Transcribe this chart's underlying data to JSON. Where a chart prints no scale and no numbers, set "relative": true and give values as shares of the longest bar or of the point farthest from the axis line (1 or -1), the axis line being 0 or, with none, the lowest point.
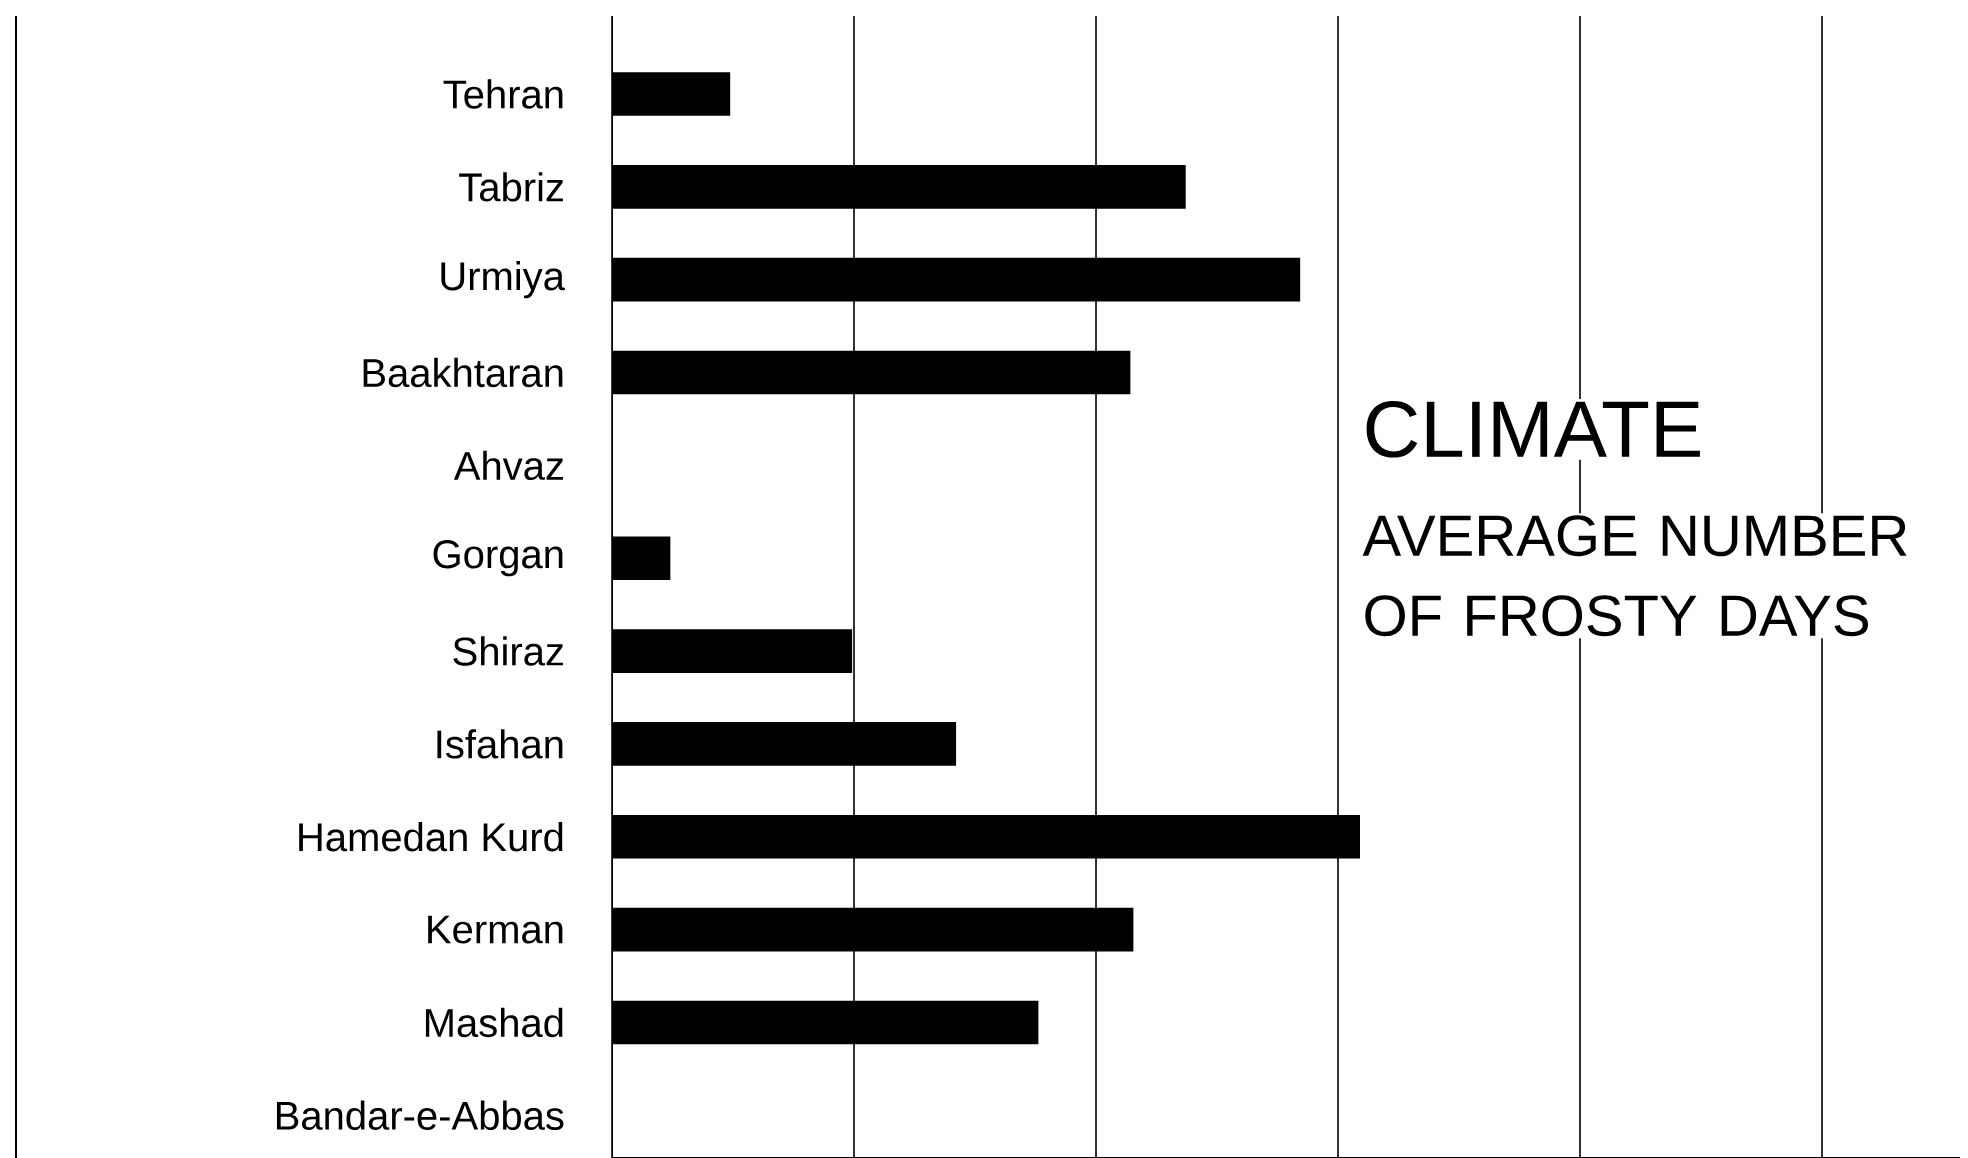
{
  "chart_data": {
    "type": "bar",
    "orientation": "horizontal",
    "relative": true,
    "title": "CLIMATE",
    "subtitle": "AVERAGE NUMBER OF FROSTY DAYS",
    "categories": [
      "Tehran",
      "Tabriz",
      "Urmiya",
      "Baakhtaran",
      "Ahvaz",
      "Gorgan",
      "Shiraz",
      "Isfahan",
      "Hamedan Kurd",
      "Kerman",
      "Mashad",
      "Bandar-e-Abbas"
    ],
    "values": [
      0.158,
      0.767,
      0.92,
      0.693,
      0,
      0.078,
      0.321,
      0.46,
      1,
      0.697,
      0.57,
      0
    ],
    "color": "#000000",
    "grid": "x"
  }
}
